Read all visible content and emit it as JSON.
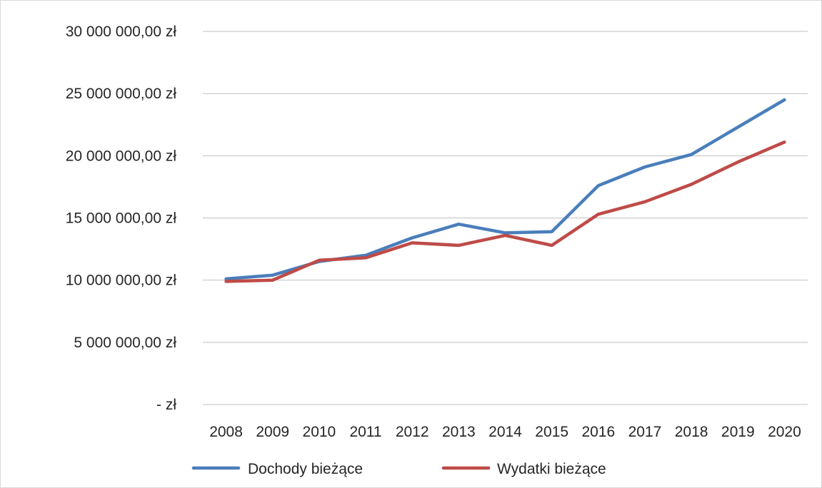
{
  "chart_data": {
    "type": "line",
    "title": "",
    "xlabel": "",
    "ylabel": "",
    "categories": [
      "2008",
      "2009",
      "2010",
      "2011",
      "2012",
      "2013",
      "2014",
      "2015",
      "2016",
      "2017",
      "2018",
      "2019",
      "2020"
    ],
    "series": [
      {
        "name": "Dochody bieżące",
        "color": "#4a7ebb",
        "values": [
          10100000,
          10400000,
          11500000,
          12000000,
          13400000,
          14500000,
          13800000,
          13900000,
          17600000,
          19100000,
          20100000,
          22300000,
          24500000
        ]
      },
      {
        "name": "Wydatki bieżące",
        "color": "#be4b48",
        "values": [
          9900000,
          10000000,
          11600000,
          11800000,
          13000000,
          12800000,
          13600000,
          12800000,
          15300000,
          16300000,
          17700000,
          19500000,
          21100000
        ]
      }
    ],
    "ylim": [
      0,
      30000000
    ],
    "y_ticks": [
      {
        "value": 0,
        "label": "-   zł"
      },
      {
        "value": 5000000,
        "label": "5 000 000,00 zł"
      },
      {
        "value": 10000000,
        "label": "10 000 000,00 zł"
      },
      {
        "value": 15000000,
        "label": "15 000 000,00 zł"
      },
      {
        "value": 20000000,
        "label": "20 000 000,00 zł"
      },
      {
        "value": 25000000,
        "label": "25 000 000,00 zł"
      },
      {
        "value": 30000000,
        "label": "30 000 000,00 zł"
      }
    ],
    "grid": true,
    "legend_position": "bottom"
  }
}
